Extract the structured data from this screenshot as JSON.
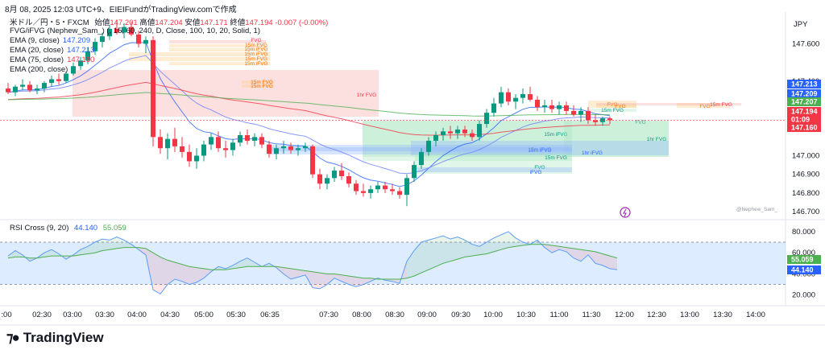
{
  "header": {
    "title": "8月 08, 2025 12:03 UTC+9、EIEIFundがTradingView.comで作成"
  },
  "symbol": {
    "name": "米ドル／円・5・FXCM",
    "open_label": "始値",
    "open": "147.201",
    "high_label": "高値",
    "high": "147.204",
    "low_label": "安値",
    "low": "147.171",
    "close_label": "終値",
    "close": "147.194",
    "change": "-0.007 (-0.00%)",
    "currency": "JPY"
  },
  "indicators": [
    {
      "label": "FVG/iFVG (Nephew_Sam_) (, 15, 60, 240, D, Close, 100, 10, 20, Solid, 1)",
      "value": ""
    },
    {
      "label": "EMA (9, close)",
      "value": "147.209",
      "color": "#2962ff"
    },
    {
      "label": "EMA (20, close)",
      "value": "147.213",
      "color": "#2962ff"
    },
    {
      "label": "EMA (75, close)",
      "value": "147.160",
      "color": "#f23645"
    },
    {
      "label": "EMA (200, close)",
      "value": "",
      "color": "#4caf50"
    }
  ],
  "rsi_legend": {
    "label": "RSI Cross (9, 20)",
    "fast": "44.140",
    "slow": "55.059"
  },
  "watermark": "@Nephew_Sam_",
  "branding": "TradingView",
  "chart_data": {
    "type": "candlestick",
    "price_axis": {
      "ticks": [
        "147.600",
        "147.400",
        "147.000",
        "146.900",
        "146.800",
        "146.700"
      ],
      "ylim": [
        146.67,
        147.77
      ]
    },
    "time_axis": {
      "ticks": [
        ":00",
        "02:30",
        "03:00",
        "03:30",
        "04:00",
        "04:30",
        "05:00",
        "05:30",
        "06:35",
        "07:30",
        "08:00",
        "08:30",
        "09:00",
        "09:30",
        "10:00",
        "10:30",
        "11:00",
        "11:30",
        "12:00",
        "12:30",
        "13:00",
        "13:30",
        "14:00"
      ]
    },
    "price_tags": [
      {
        "value": "147.213",
        "color": "#2962ff"
      },
      {
        "value": "147.209",
        "color": "#2962ff"
      },
      {
        "value": "147.207",
        "color": "#4caf50"
      },
      {
        "value": "147.194",
        "color": "#f23645"
      },
      {
        "value": "01:09",
        "color": "#f23645"
      },
      {
        "value": "147.160",
        "color": "#f23645"
      }
    ],
    "zones": [
      {
        "label": "FVG",
        "color": "#f7a7a7",
        "text_color": "#f23645"
      },
      {
        "label": "15m FVG",
        "color": "#ffcc80",
        "text_color": "#ff6d00"
      },
      {
        "label": "15m iFVG",
        "color": "#ffcc80",
        "text_color": "#ff6d00"
      },
      {
        "label": "15m iFVG",
        "color": "#ffcc80",
        "text_color": "#ff6d00"
      },
      {
        "label": "15m FVG",
        "color": "#ffcc80",
        "text_color": "#ff6d00"
      },
      {
        "label": "15m iFVG",
        "color": "#ffcc80",
        "text_color": "#ff6d00"
      },
      {
        "label": "1hr FVG",
        "color": "#f7a7a7",
        "text_color": "#f23645"
      },
      {
        "label": "15m FVG",
        "color": "#ffcc80",
        "text_color": "#ff6d00"
      },
      {
        "label": "15m FVG",
        "color": "#ffcc80",
        "text_color": "#ff6d00"
      },
      {
        "label": "FVG",
        "color": "#ffcc80",
        "text_color": "#ff6d00"
      },
      {
        "label": "15m FVG",
        "color": "#a5e6bf",
        "text_color": "#089981"
      },
      {
        "label": "FVG",
        "color": "#a5e6bf",
        "text_color": "#089981"
      },
      {
        "label": "15m iFVG",
        "color": "#a5e6bf",
        "text_color": "#089981"
      },
      {
        "label": "1hr FVG",
        "color": "#a5e6bf",
        "text_color": "#089981"
      },
      {
        "label": "15m iFVG",
        "color": "#90b4fe",
        "text_color": "#2962ff"
      },
      {
        "label": "15m iFVG",
        "color": "#90b4fe",
        "text_color": "#2962ff"
      },
      {
        "label": "1hr iFVG",
        "color": "#90b4fe",
        "text_color": "#2962ff"
      },
      {
        "label": "15m FVG",
        "color": "#a5e6bf",
        "text_color": "#089981"
      },
      {
        "label": "FVG",
        "color": "#a5e6bf",
        "text_color": "#089981"
      },
      {
        "label": "iFVG",
        "color": "#90b4fe",
        "text_color": "#2962ff"
      },
      {
        "label": "FVG",
        "color": "#ffcc80",
        "text_color": "#ff6d00"
      },
      {
        "label": "FVG",
        "color": "#ffcc80",
        "text_color": "#ff6d00"
      },
      {
        "label": "15m FVG",
        "color": "#f7a7a7",
        "text_color": "#f23645"
      }
    ],
    "candles": [
      {
        "o": 147.36,
        "h": 147.39,
        "l": 147.33,
        "c": 147.34
      },
      {
        "o": 147.34,
        "h": 147.38,
        "l": 147.32,
        "c": 147.37
      },
      {
        "o": 147.37,
        "h": 147.41,
        "l": 147.35,
        "c": 147.38
      },
      {
        "o": 147.38,
        "h": 147.4,
        "l": 147.34,
        "c": 147.35
      },
      {
        "o": 147.35,
        "h": 147.38,
        "l": 147.33,
        "c": 147.36
      },
      {
        "o": 147.36,
        "h": 147.4,
        "l": 147.34,
        "c": 147.39
      },
      {
        "o": 147.39,
        "h": 147.43,
        "l": 147.37,
        "c": 147.41
      },
      {
        "o": 147.41,
        "h": 147.44,
        "l": 147.38,
        "c": 147.4
      },
      {
        "o": 147.4,
        "h": 147.45,
        "l": 147.39,
        "c": 147.44
      },
      {
        "o": 147.44,
        "h": 147.5,
        "l": 147.43,
        "c": 147.48
      },
      {
        "o": 147.48,
        "h": 147.53,
        "l": 147.46,
        "c": 147.51
      },
      {
        "o": 147.51,
        "h": 147.58,
        "l": 147.49,
        "c": 147.56
      },
      {
        "o": 147.56,
        "h": 147.63,
        "l": 147.54,
        "c": 147.61
      },
      {
        "o": 147.61,
        "h": 147.66,
        "l": 147.58,
        "c": 147.64
      },
      {
        "o": 147.64,
        "h": 147.7,
        "l": 147.62,
        "c": 147.68
      },
      {
        "o": 147.68,
        "h": 147.73,
        "l": 147.65,
        "c": 147.66
      },
      {
        "o": 147.66,
        "h": 147.71,
        "l": 147.63,
        "c": 147.69
      },
      {
        "o": 147.69,
        "h": 147.72,
        "l": 147.64,
        "c": 147.65
      },
      {
        "o": 147.65,
        "h": 147.67,
        "l": 147.58,
        "c": 147.6
      },
      {
        "o": 147.6,
        "h": 147.64,
        "l": 147.55,
        "c": 147.62
      },
      {
        "o": 147.62,
        "h": 147.64,
        "l": 147.05,
        "c": 147.1
      },
      {
        "o": 147.1,
        "h": 147.14,
        "l": 147.01,
        "c": 147.04
      },
      {
        "o": 147.04,
        "h": 147.12,
        "l": 146.98,
        "c": 147.09
      },
      {
        "o": 147.09,
        "h": 147.15,
        "l": 147.02,
        "c": 147.05
      },
      {
        "o": 147.05,
        "h": 147.1,
        "l": 146.99,
        "c": 147.02
      },
      {
        "o": 147.02,
        "h": 147.06,
        "l": 146.94,
        "c": 146.97
      },
      {
        "o": 146.97,
        "h": 147.04,
        "l": 146.93,
        "c": 147.0
      },
      {
        "o": 147.0,
        "h": 147.08,
        "l": 146.97,
        "c": 147.06
      },
      {
        "o": 147.06,
        "h": 147.12,
        "l": 147.03,
        "c": 147.1
      },
      {
        "o": 147.1,
        "h": 147.13,
        "l": 147.02,
        "c": 147.04
      },
      {
        "o": 147.04,
        "h": 147.08,
        "l": 146.99,
        "c": 147.03
      },
      {
        "o": 147.03,
        "h": 147.09,
        "l": 147.0,
        "c": 147.07
      },
      {
        "o": 147.07,
        "h": 147.13,
        "l": 147.05,
        "c": 147.11
      },
      {
        "o": 147.11,
        "h": 147.14,
        "l": 147.06,
        "c": 147.08
      },
      {
        "o": 147.08,
        "h": 147.12,
        "l": 147.05,
        "c": 147.1
      },
      {
        "o": 147.1,
        "h": 147.12,
        "l": 147.04,
        "c": 147.06
      },
      {
        "o": 147.06,
        "h": 147.08,
        "l": 146.99,
        "c": 147.01
      },
      {
        "o": 147.01,
        "h": 147.06,
        "l": 146.98,
        "c": 147.04
      },
      {
        "o": 147.04,
        "h": 147.08,
        "l": 147.01,
        "c": 147.05
      },
      {
        "o": 147.05,
        "h": 147.07,
        "l": 147.01,
        "c": 147.03
      },
      {
        "o": 147.03,
        "h": 147.06,
        "l": 147.0,
        "c": 147.04
      },
      {
        "o": 147.04,
        "h": 147.07,
        "l": 147.02,
        "c": 147.05
      },
      {
        "o": 147.05,
        "h": 147.06,
        "l": 146.88,
        "c": 146.9
      },
      {
        "o": 146.9,
        "h": 146.93,
        "l": 146.82,
        "c": 146.85
      },
      {
        "o": 146.85,
        "h": 146.9,
        "l": 146.82,
        "c": 146.88
      },
      {
        "o": 146.88,
        "h": 146.94,
        "l": 146.86,
        "c": 146.92
      },
      {
        "o": 146.92,
        "h": 146.96,
        "l": 146.87,
        "c": 146.89
      },
      {
        "o": 146.89,
        "h": 146.91,
        "l": 146.83,
        "c": 146.85
      },
      {
        "o": 146.85,
        "h": 146.87,
        "l": 146.79,
        "c": 146.81
      },
      {
        "o": 146.81,
        "h": 146.85,
        "l": 146.78,
        "c": 146.8
      },
      {
        "o": 146.8,
        "h": 146.84,
        "l": 146.77,
        "c": 146.82
      },
      {
        "o": 146.82,
        "h": 146.86,
        "l": 146.8,
        "c": 146.84
      },
      {
        "o": 146.84,
        "h": 146.86,
        "l": 146.8,
        "c": 146.82
      },
      {
        "o": 146.82,
        "h": 146.85,
        "l": 146.79,
        "c": 146.81
      },
      {
        "o": 146.81,
        "h": 146.83,
        "l": 146.77,
        "c": 146.79
      },
      {
        "o": 146.79,
        "h": 146.9,
        "l": 146.73,
        "c": 146.88
      },
      {
        "o": 146.88,
        "h": 146.97,
        "l": 146.86,
        "c": 146.95
      },
      {
        "o": 146.95,
        "h": 147.04,
        "l": 146.93,
        "c": 147.02
      },
      {
        "o": 147.02,
        "h": 147.1,
        "l": 147.0,
        "c": 147.08
      },
      {
        "o": 147.08,
        "h": 147.13,
        "l": 147.05,
        "c": 147.11
      },
      {
        "o": 147.11,
        "h": 147.15,
        "l": 147.08,
        "c": 147.13
      },
      {
        "o": 147.13,
        "h": 147.16,
        "l": 147.09,
        "c": 147.12
      },
      {
        "o": 147.12,
        "h": 147.16,
        "l": 147.09,
        "c": 147.14
      },
      {
        "o": 147.14,
        "h": 147.16,
        "l": 147.1,
        "c": 147.12
      },
      {
        "o": 147.12,
        "h": 147.14,
        "l": 147.08,
        "c": 147.1
      },
      {
        "o": 147.1,
        "h": 147.19,
        "l": 147.08,
        "c": 147.17
      },
      {
        "o": 147.17,
        "h": 147.25,
        "l": 147.15,
        "c": 147.23
      },
      {
        "o": 147.23,
        "h": 147.31,
        "l": 147.21,
        "c": 147.28
      },
      {
        "o": 147.28,
        "h": 147.37,
        "l": 147.26,
        "c": 147.34
      },
      {
        "o": 147.34,
        "h": 147.36,
        "l": 147.27,
        "c": 147.29
      },
      {
        "o": 147.29,
        "h": 147.33,
        "l": 147.25,
        "c": 147.31
      },
      {
        "o": 147.31,
        "h": 147.36,
        "l": 147.28,
        "c": 147.33
      },
      {
        "o": 147.33,
        "h": 147.37,
        "l": 147.29,
        "c": 147.3
      },
      {
        "o": 147.3,
        "h": 147.32,
        "l": 147.24,
        "c": 147.26
      },
      {
        "o": 147.26,
        "h": 147.3,
        "l": 147.23,
        "c": 147.27
      },
      {
        "o": 147.27,
        "h": 147.3,
        "l": 147.23,
        "c": 147.25
      },
      {
        "o": 147.25,
        "h": 147.29,
        "l": 147.22,
        "c": 147.27
      },
      {
        "o": 147.27,
        "h": 147.29,
        "l": 147.22,
        "c": 147.24
      },
      {
        "o": 147.24,
        "h": 147.27,
        "l": 147.21,
        "c": 147.22
      },
      {
        "o": 147.22,
        "h": 147.26,
        "l": 147.18,
        "c": 147.24
      },
      {
        "o": 147.24,
        "h": 147.26,
        "l": 147.17,
        "c": 147.19
      },
      {
        "o": 147.19,
        "h": 147.22,
        "l": 147.16,
        "c": 147.18
      },
      {
        "o": 147.18,
        "h": 147.21,
        "l": 147.16,
        "c": 147.2
      },
      {
        "o": 147.2,
        "h": 147.21,
        "l": 147.17,
        "c": 147.19
      }
    ],
    "rsi": {
      "fast_color": "#5b9cf6",
      "slow_color": "#4caf50",
      "band_color": "#b3d4fc",
      "ticks": [
        "80.000",
        "60.000",
        "40.000",
        "20.000"
      ],
      "ylim": [
        16,
        86
      ],
      "band": [
        30,
        70
      ],
      "fast": [
        57,
        62,
        58,
        52,
        55,
        60,
        63,
        59,
        54,
        58,
        63,
        66,
        70,
        73,
        72,
        75,
        72,
        68,
        63,
        58,
        25,
        21,
        30,
        35,
        33,
        30,
        32,
        36,
        42,
        47,
        45,
        48,
        52,
        55,
        51,
        47,
        50,
        46,
        40,
        35,
        37,
        39,
        27,
        26,
        30,
        36,
        33,
        30,
        28,
        30,
        33,
        36,
        34,
        33,
        31,
        52,
        62,
        70,
        72,
        74,
        76,
        73,
        75,
        72,
        68,
        66,
        70,
        74,
        77,
        80,
        74,
        70,
        68,
        72,
        65,
        60,
        63,
        61,
        55,
        52,
        58,
        50,
        48,
        45,
        44
      ],
      "slow": [
        55,
        56,
        56,
        55,
        55,
        56,
        57,
        57,
        57,
        57,
        58,
        59,
        60,
        62,
        63,
        64,
        65,
        65,
        65,
        64,
        60,
        56,
        53,
        51,
        49,
        47,
        46,
        45,
        44,
        44,
        44,
        45,
        46,
        47,
        47,
        47,
        47,
        47,
        46,
        45,
        44,
        43,
        42,
        41,
        40,
        40,
        39,
        38,
        37,
        36,
        36,
        35,
        35,
        35,
        35,
        36,
        38,
        41,
        44,
        47,
        50,
        52,
        54,
        56,
        57,
        58,
        59,
        61,
        63,
        65,
        66,
        67,
        68,
        68,
        68,
        67,
        66,
        65,
        64,
        63,
        62,
        61,
        59,
        57,
        55
      ]
    }
  }
}
